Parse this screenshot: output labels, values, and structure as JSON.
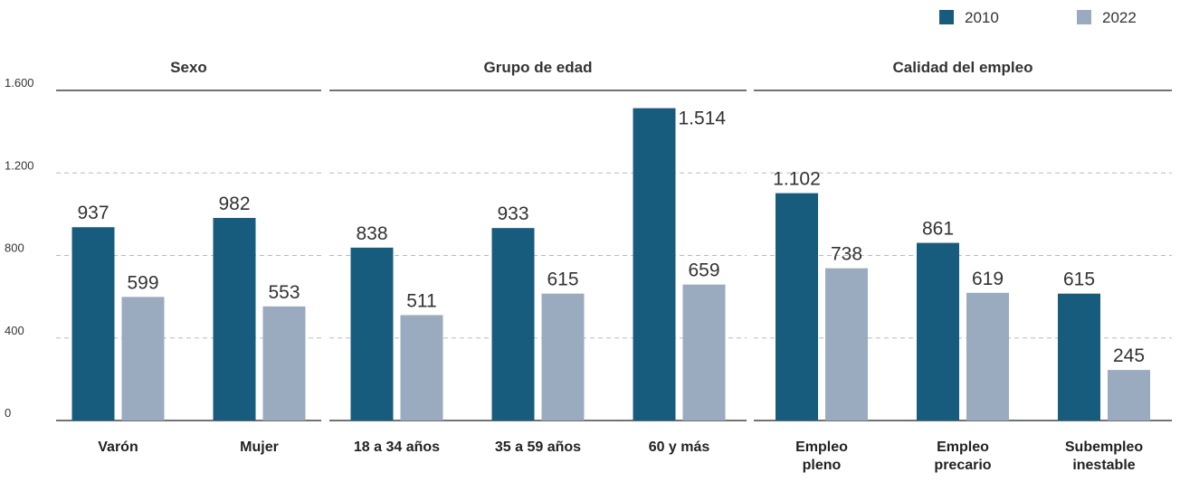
{
  "chart_data": {
    "type": "bar",
    "ylim": [
      0,
      1600
    ],
    "yticks": [
      0,
      400,
      800,
      {
        "value": 1200,
        "label": "1.200"
      },
      {
        "value": 1600,
        "label": "1.600"
      }
    ],
    "grid": true,
    "legend": "top-right",
    "series": [
      {
        "name": "2010",
        "color": "#175c7d"
      },
      {
        "name": "2022",
        "color": "#9aabbf"
      }
    ],
    "panels": [
      {
        "title": "Sexo",
        "categories": [
          "Varón",
          "Mujer"
        ],
        "values": [
          [
            937,
            982
          ],
          [
            599,
            553
          ]
        ],
        "value_labels": [
          [
            "937",
            "982"
          ],
          [
            "599",
            "553"
          ]
        ]
      },
      {
        "title": "Grupo de edad",
        "categories": [
          "18 a 34 años",
          "35 a 59 años",
          "60 y más"
        ],
        "values": [
          [
            838,
            933,
            1514
          ],
          [
            511,
            615,
            659
          ]
        ],
        "value_labels": [
          [
            "838",
            "933",
            "1.514"
          ],
          [
            "511",
            "615",
            "659"
          ]
        ]
      },
      {
        "title": "Calidad del empleo",
        "categories": [
          "Empleo pleno",
          "Empleo precario",
          "Subempleo inestable"
        ],
        "values": [
          [
            1102,
            861,
            615
          ],
          [
            738,
            619,
            245
          ]
        ],
        "value_labels": [
          [
            "1.102",
            "861",
            "615"
          ],
          [
            "738",
            "619",
            "245"
          ]
        ]
      }
    ]
  }
}
